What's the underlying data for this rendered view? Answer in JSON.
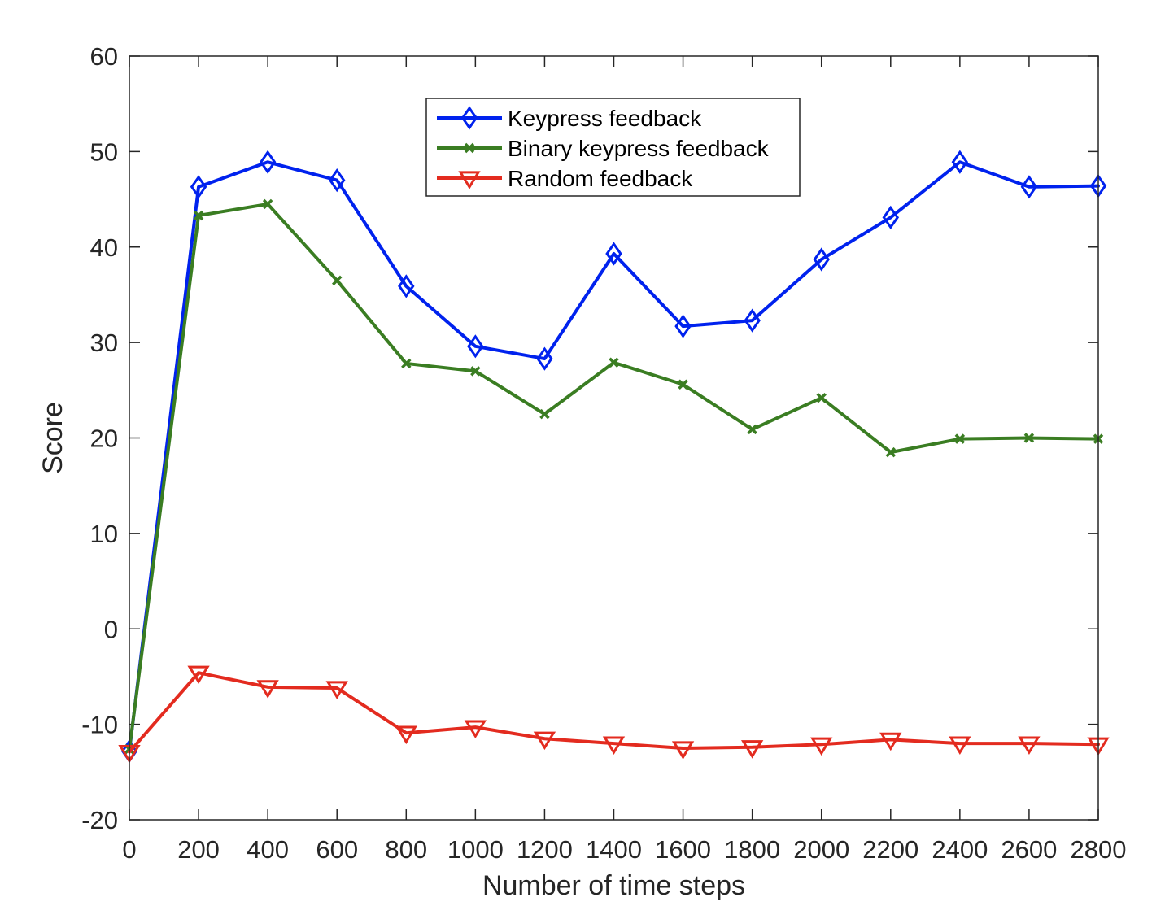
{
  "chart_data": {
    "type": "line",
    "title": "",
    "xlabel": "Number of time steps",
    "ylabel": "Score",
    "xlim": [
      0,
      2800
    ],
    "ylim": [
      -20,
      60
    ],
    "xticks": [
      0,
      200,
      400,
      600,
      800,
      1000,
      1200,
      1400,
      1600,
      1800,
      2000,
      2200,
      2400,
      2600,
      2800
    ],
    "yticks": [
      -20,
      -10,
      0,
      10,
      20,
      30,
      40,
      50,
      60
    ],
    "x": [
      0,
      200,
      400,
      600,
      800,
      1000,
      1200,
      1400,
      1600,
      1800,
      2000,
      2200,
      2400,
      2600,
      2800
    ],
    "grid": false,
    "legend_position": "top-center",
    "series": [
      {
        "name": "Keypress feedback",
        "color": "#0022ee",
        "marker": "diamond",
        "values": [
          -12.8,
          46.3,
          48.9,
          47.0,
          35.9,
          29.6,
          28.3,
          39.3,
          31.7,
          32.3,
          38.7,
          43.1,
          48.9,
          46.3,
          46.4
        ]
      },
      {
        "name": "Binary keypress feedback",
        "color": "#3a7d22",
        "marker": "x",
        "values": [
          -12.6,
          43.3,
          44.5,
          36.5,
          27.8,
          27.0,
          22.5,
          27.9,
          25.6,
          20.9,
          24.2,
          18.5,
          19.9,
          20.0,
          19.9
        ]
      },
      {
        "name": "Random feedback",
        "color": "#e32b1f",
        "marker": "triangle-down",
        "values": [
          -12.9,
          -4.6,
          -6.1,
          -6.2,
          -10.9,
          -10.3,
          -11.5,
          -12.0,
          -12.5,
          -12.4,
          -12.1,
          -11.6,
          -12.0,
          -12.0,
          -12.1
        ]
      }
    ]
  }
}
